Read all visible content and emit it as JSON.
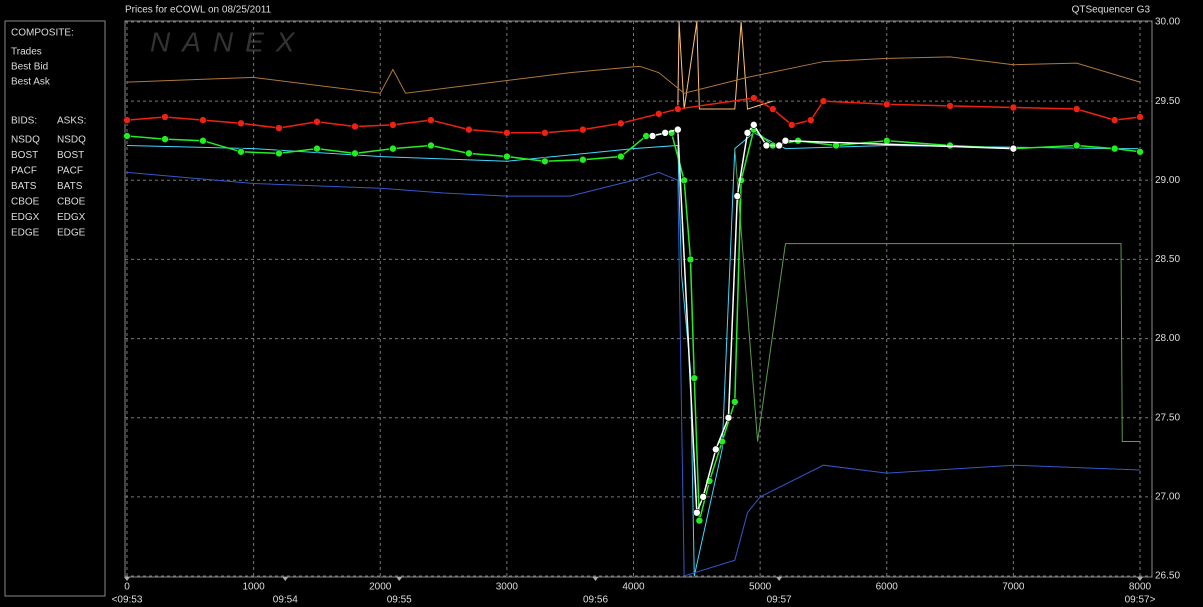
{
  "chart_data": {
    "type": "line",
    "title": "Prices for  eCOWL  on  08/25/2011",
    "source": "QTSequencer G3",
    "watermark": "NANEX",
    "composite_label": "COMPOSITE:",
    "bids_label": "BIDS:",
    "asks_label": "ASKS:",
    "ylim": [
      26.5,
      30.0
    ],
    "yticks": [
      {
        "value": 26.5,
        "label": "26.50"
      },
      {
        "value": 27.0,
        "label": "27.00"
      },
      {
        "value": 27.5,
        "label": "27.50"
      },
      {
        "value": 28.0,
        "label": "28.00"
      },
      {
        "value": 28.5,
        "label": "28.50"
      },
      {
        "value": 29.0,
        "label": "29.00"
      },
      {
        "value": 29.5,
        "label": "29.50"
      },
      {
        "value": 30.0,
        "label": "30.00"
      }
    ],
    "xlim": [
      0,
      8000
    ],
    "xticks": [
      0,
      1000,
      2000,
      3000,
      4000,
      5000,
      6000,
      7000,
      8000
    ],
    "time_ticks": [
      {
        "value": 0,
        "label": "<09:53"
      },
      {
        "value": 1250,
        "label": "09:54"
      },
      {
        "value": 2150,
        "label": "09:55"
      },
      {
        "value": 3700,
        "label": "09:56"
      },
      {
        "value": 5150,
        "label": "09:57"
      },
      {
        "value": 8000,
        "label": "09:57>"
      }
    ],
    "grid": true,
    "series": [
      {
        "name": "Trades",
        "color": "#ffffff",
        "marker": "circle",
        "x": [
          4150,
          4250,
          4350,
          4500,
          4550,
          4650,
          4750,
          4820,
          4900,
          4950,
          5050,
          5150,
          5200,
          7000
        ],
        "values": [
          29.28,
          29.3,
          29.32,
          26.9,
          27.0,
          27.3,
          27.5,
          28.9,
          29.3,
          29.35,
          29.22,
          29.22,
          29.25,
          29.2
        ]
      },
      {
        "name": "Best Bid",
        "color": "#22ee22",
        "marker": "circle",
        "x": [
          0,
          300,
          600,
          900,
          1200,
          1500,
          1800,
          2100,
          2400,
          2700,
          3000,
          3300,
          3600,
          3900,
          4100,
          4300,
          4400,
          4450,
          4480,
          4520,
          4600,
          4700,
          4800,
          4850,
          4950,
          5100,
          5300,
          5600,
          6000,
          6500,
          7000,
          7500,
          7800,
          8000
        ],
        "values": [
          29.28,
          29.26,
          29.25,
          29.18,
          29.17,
          29.2,
          29.17,
          29.2,
          29.22,
          29.17,
          29.15,
          29.12,
          29.13,
          29.15,
          29.28,
          29.3,
          29.0,
          28.5,
          27.75,
          26.85,
          27.1,
          27.35,
          27.6,
          29.0,
          29.32,
          29.22,
          29.25,
          29.22,
          29.25,
          29.22,
          29.2,
          29.22,
          29.2,
          29.18
        ]
      },
      {
        "name": "Best Ask",
        "color": "#ee2211",
        "marker": "circle",
        "x": [
          0,
          300,
          600,
          900,
          1200,
          1500,
          1800,
          2100,
          2400,
          2700,
          3000,
          3300,
          3600,
          3900,
          4200,
          4350,
          4950,
          5100,
          5250,
          5400,
          5500,
          6000,
          6500,
          7000,
          7500,
          7800,
          8000
        ],
        "values": [
          29.38,
          29.4,
          29.38,
          29.36,
          29.33,
          29.37,
          29.34,
          29.35,
          29.38,
          29.32,
          29.3,
          29.3,
          29.32,
          29.36,
          29.42,
          29.45,
          29.52,
          29.45,
          29.35,
          29.38,
          29.5,
          29.48,
          29.47,
          29.46,
          29.45,
          29.38,
          29.4
        ]
      }
    ],
    "bids": [
      {
        "name": "NSDQ",
        "color": "#4a8cff"
      },
      {
        "name": "BOST",
        "color": "#a8c070"
      },
      {
        "name": "PACF",
        "color": "#40d8ff",
        "x": [
          0,
          1000,
          2000,
          3000,
          4000,
          4350,
          4380,
          4450,
          4480,
          4700,
          4800,
          4950,
          5200,
          6000,
          7800,
          8000
        ],
        "values": [
          29.22,
          29.2,
          29.15,
          29.12,
          29.2,
          29.22,
          28.4,
          27.8,
          26.5,
          27.3,
          29.2,
          29.3,
          29.2,
          29.22,
          29.2,
          29.2
        ]
      },
      {
        "name": "BATS",
        "color": "#a8ccff"
      },
      {
        "name": "CBOE",
        "color": "#3458c8",
        "x": [
          0,
          1000,
          2000,
          2500,
          3000,
          3500,
          4000,
          4200,
          4350,
          4400,
          4800,
          4900,
          5000,
          5500,
          6000,
          7000,
          8000
        ],
        "values": [
          29.05,
          28.98,
          28.95,
          28.92,
          28.9,
          28.9,
          29.0,
          29.05,
          29.0,
          26.5,
          26.6,
          26.9,
          27.0,
          27.2,
          27.15,
          27.2,
          27.17
        ]
      },
      {
        "name": "EDGX",
        "color": "#5e9a50",
        "x": [
          4800,
          4980,
          5200,
          6000,
          7850,
          7860,
          8000
        ],
        "values": [
          29.2,
          27.35,
          28.6,
          28.6,
          28.6,
          27.35,
          27.35
        ]
      },
      {
        "name": "EDGE",
        "color": "#40a848"
      }
    ],
    "asks": [
      {
        "name": "NSDQ",
        "color": "#ff8040"
      },
      {
        "name": "BOST",
        "color": "#ff9868"
      },
      {
        "name": "PACF",
        "color": "#ffff70"
      },
      {
        "name": "BATS",
        "color": "#ffc078",
        "x": [
          4350,
          4360,
          4400,
          4500,
          4520,
          4800,
          4850,
          4900,
          5100
        ],
        "values": [
          29.45,
          30.0,
          29.45,
          30.0,
          29.45,
          29.45,
          30.0,
          29.45,
          29.5
        ]
      },
      {
        "name": "CBOE",
        "color": "#ff9a30"
      },
      {
        "name": "EDGX",
        "color": "#b07838",
        "x": [
          0,
          1000,
          2000,
          2100,
          2200,
          3500,
          4050,
          4200,
          4400,
          4900,
          5500,
          6000,
          6500,
          7000,
          7500,
          8000
        ],
        "values": [
          29.62,
          29.65,
          29.55,
          29.7,
          29.55,
          29.68,
          29.72,
          29.68,
          29.55,
          29.65,
          29.75,
          29.77,
          29.78,
          29.73,
          29.74,
          29.62
        ]
      },
      {
        "name": "EDGE",
        "color": "#d06040"
      }
    ]
  }
}
